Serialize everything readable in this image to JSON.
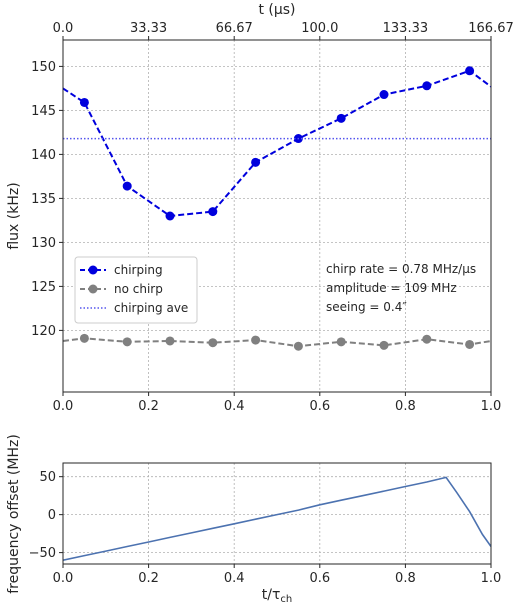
{
  "chart_data": [
    {
      "type": "line",
      "xlabel": "",
      "ylabel": "flux (kHz)",
      "x_top_label": "t (μs)",
      "xlim": [
        0,
        1
      ],
      "ylim": [
        113,
        153
      ],
      "xticks": [
        "0.0",
        "0.2",
        "0.4",
        "0.6",
        "0.8",
        "1.0"
      ],
      "yticks": [
        "120",
        "125",
        "130",
        "135",
        "140",
        "145",
        "150"
      ],
      "top_ticks": [
        "0.0",
        "33.33",
        "66.67",
        "100.0",
        "133.33",
        "166.67"
      ],
      "grid": true,
      "legend_placement": "center-left",
      "series": [
        {
          "name": "chirping",
          "style": "dashed-markers",
          "color": "#0000dd",
          "x": [
            0.0,
            0.05,
            0.15,
            0.25,
            0.35,
            0.45,
            0.55,
            0.65,
            0.75,
            0.85,
            0.95,
            1.0
          ],
          "y": [
            147.5,
            145.9,
            136.4,
            133.0,
            133.5,
            139.1,
            141.8,
            144.1,
            146.8,
            147.8,
            149.5,
            147.7
          ],
          "marker_indices": [
            1,
            2,
            3,
            4,
            5,
            6,
            7,
            8,
            9,
            10
          ]
        },
        {
          "name": "no chirp",
          "style": "dashed-markers",
          "color": "#808080",
          "x": [
            0.0,
            0.05,
            0.15,
            0.25,
            0.35,
            0.45,
            0.55,
            0.65,
            0.75,
            0.85,
            0.95,
            1.0
          ],
          "y": [
            118.8,
            119.1,
            118.7,
            118.8,
            118.6,
            118.9,
            118.2,
            118.7,
            118.3,
            119.0,
            118.4,
            118.8
          ],
          "marker_indices": [
            1,
            2,
            3,
            4,
            5,
            6,
            7,
            8,
            9,
            10
          ]
        },
        {
          "name": "chirping ave",
          "style": "dotted",
          "color": "#5555ee",
          "x": [
            0.0,
            1.0
          ],
          "y": [
            141.8,
            141.8
          ]
        }
      ],
      "annotations": [
        "chirp rate = 0.78 MHz/μs",
        "amplitude = 109 MHz",
        "seeing = 0.4″"
      ]
    },
    {
      "type": "line",
      "xlabel": "t/τ_ch",
      "xlabel_main": "t/τ",
      "xlabel_sub": "ch",
      "ylabel": "frequency offset (MHz)",
      "xlim": [
        0,
        1
      ],
      "ylim": [
        -65,
        68
      ],
      "xticks": [
        "0.0",
        "0.2",
        "0.4",
        "0.6",
        "0.8",
        "1.0"
      ],
      "yticks": [
        "−50",
        "0",
        "50"
      ],
      "grid": true,
      "series": [
        {
          "name": "",
          "color": "#4c72b0",
          "x": [
            0.0,
            0.05,
            0.1,
            0.15,
            0.2,
            0.25,
            0.3,
            0.35,
            0.4,
            0.45,
            0.5,
            0.55,
            0.6,
            0.65,
            0.7,
            0.75,
            0.8,
            0.85,
            0.895,
            0.92,
            0.95,
            0.98,
            1.0
          ],
          "y": [
            -60,
            -54,
            -48,
            -42,
            -36,
            -30,
            -24,
            -18,
            -12,
            -6,
            0,
            6,
            13,
            19,
            25,
            31,
            37,
            43,
            49,
            29,
            4,
            -26,
            -42
          ]
        }
      ]
    }
  ]
}
